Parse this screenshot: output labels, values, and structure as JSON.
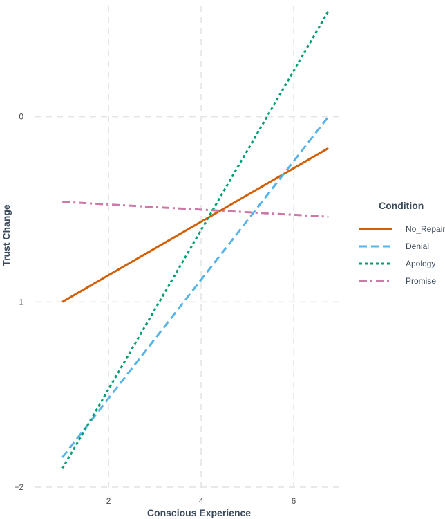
{
  "chart_data": {
    "type": "line",
    "title": "",
    "xlabel": "Conscious Experience",
    "ylabel": "Trust Change",
    "xlim": [
      0.4,
      7.0
    ],
    "ylim": [
      -2.03,
      0.6
    ],
    "x_ticks": [
      2,
      4,
      6
    ],
    "y_ticks": [
      -2,
      -1,
      0
    ],
    "grid": true,
    "legend": {
      "title": "Condition",
      "placement": "right"
    },
    "series": [
      {
        "name": "No_Repair",
        "color": "#D55E00",
        "dash": "solid",
        "x": [
          1.0,
          6.75
        ],
        "y": [
          -1.0,
          -0.17
        ]
      },
      {
        "name": "Denial",
        "color": "#56B4E9",
        "dash": "dashed",
        "x": [
          1.0,
          6.75
        ],
        "y": [
          -1.84,
          0.0
        ]
      },
      {
        "name": "Apology",
        "color": "#009E73",
        "dash": "dotted",
        "x": [
          1.0,
          6.75
        ],
        "y": [
          -1.9,
          0.57
        ]
      },
      {
        "name": "Promise",
        "color": "#CC79A7",
        "dash": "dotdash",
        "x": [
          1.0,
          6.75
        ],
        "y": [
          -0.46,
          -0.54
        ]
      }
    ]
  }
}
